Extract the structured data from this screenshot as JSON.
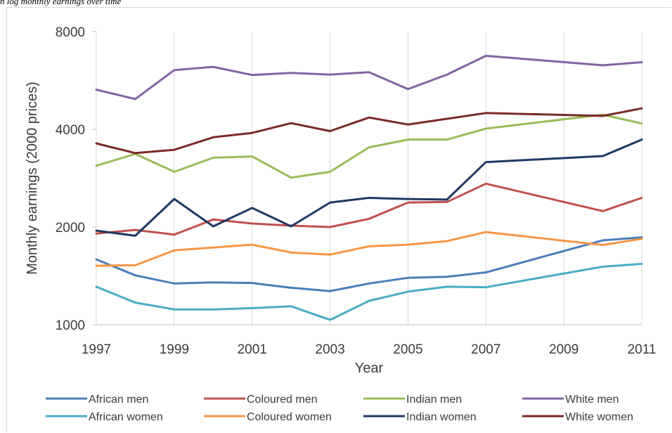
{
  "caption": "n log monthly earnings over time",
  "chart_data": {
    "type": "line",
    "xlabel": "Year",
    "ylabel": "Monthly earnings (2000 prices)",
    "y_scale": "log2",
    "ylim": [
      1000,
      8000
    ],
    "xlim": [
      1997,
      2011
    ],
    "x_ticks": [
      1997,
      1999,
      2001,
      2003,
      2005,
      2007,
      2009,
      2011
    ],
    "y_ticks": [
      1000,
      2000,
      4000,
      8000
    ],
    "grid": "vertical",
    "legend_position": "bottom",
    "x": [
      1997,
      1998,
      1999,
      2000,
      2001,
      2002,
      2003,
      2004,
      2005,
      2006,
      2007,
      2010,
      2011
    ],
    "series": [
      {
        "name": "African men",
        "color": "#4a7ebb",
        "values": [
          1590,
          1420,
          1340,
          1350,
          1345,
          1300,
          1270,
          1340,
          1395,
          1405,
          1450,
          1820,
          1860
        ]
      },
      {
        "name": "Coloured men",
        "color": "#c0504d",
        "values": [
          1910,
          1960,
          1895,
          2110,
          2050,
          2020,
          2000,
          2120,
          2380,
          2390,
          2720,
          2240,
          2460
        ]
      },
      {
        "name": "Indian men",
        "color": "#9bbb59",
        "values": [
          3090,
          3360,
          2960,
          3270,
          3300,
          2840,
          2960,
          3520,
          3720,
          3720,
          4020,
          4440,
          4170
        ]
      },
      {
        "name": "White men",
        "color": "#8064a2",
        "values": [
          5300,
          4960,
          6090,
          6230,
          5880,
          5970,
          5900,
          6000,
          5320,
          5900,
          6740,
          6300,
          6440
        ]
      },
      {
        "name": "African women",
        "color": "#4bacc6",
        "values": [
          1310,
          1170,
          1115,
          1115,
          1125,
          1140,
          1035,
          1185,
          1265,
          1310,
          1305,
          1510,
          1540
        ]
      },
      {
        "name": "Coloured women",
        "color": "#f79646",
        "values": [
          1520,
          1525,
          1695,
          1730,
          1765,
          1670,
          1645,
          1745,
          1765,
          1810,
          1930,
          1760,
          1840
        ]
      },
      {
        "name": "Indian women",
        "color": "#1f3864",
        "values": [
          1950,
          1880,
          2440,
          2010,
          2290,
          2010,
          2380,
          2460,
          2440,
          2430,
          3170,
          3310,
          3720
        ]
      },
      {
        "name": "White women",
        "color": "#7b2a28",
        "values": [
          3620,
          3380,
          3460,
          3780,
          3900,
          4180,
          3950,
          4350,
          4140,
          4310,
          4490,
          4400,
          4640
        ]
      }
    ]
  }
}
